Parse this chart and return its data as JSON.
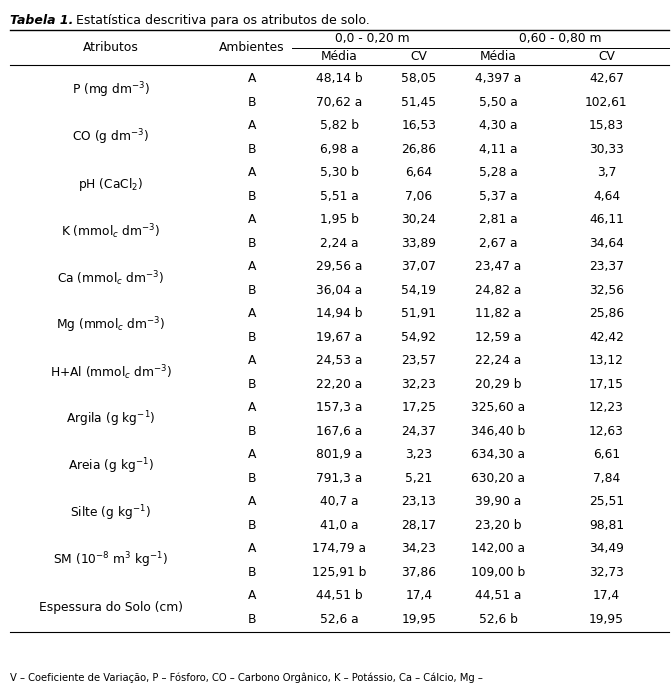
{
  "title_bold": "Tabela 1.",
  "title_normal": " Estatística descritiva para os atributos de solo.",
  "footer": "V – Coeficiente de Variação, P – Fósforo, CO – Carbono Orgânico, K – Potássio, Ca – Cálcio, Mg –",
  "group_header1_left": "0,0 - 0,20 m",
  "group_header1_right": "0,60 - 0,80 m",
  "col2": "Média",
  "col3": "CV",
  "col4": "Média",
  "col5": "CV",
  "hdr_atributos": "Atributos",
  "hdr_ambientes": "Ambientes",
  "rows": [
    {
      "attr": "P (mg dm$^{-3}$)",
      "amb": "A",
      "m1": "48,14 b",
      "cv1": "58,05",
      "m2": "4,397 a",
      "cv2": "42,67"
    },
    {
      "attr": "",
      "amb": "B",
      "m1": "70,62 a",
      "cv1": "51,45",
      "m2": "5,50 a",
      "cv2": "102,61"
    },
    {
      "attr": "CO (g dm$^{-3}$)",
      "amb": "A",
      "m1": "5,82 b",
      "cv1": "16,53",
      "m2": "4,30 a",
      "cv2": "15,83"
    },
    {
      "attr": "",
      "amb": "B",
      "m1": "6,98 a",
      "cv1": "26,86",
      "m2": "4,11 a",
      "cv2": "30,33"
    },
    {
      "attr": "pH (CaCl$_2$)",
      "amb": "A",
      "m1": "5,30 b",
      "cv1": "6,64",
      "m2": "5,28 a",
      "cv2": "3,7"
    },
    {
      "attr": "",
      "amb": "B",
      "m1": "5,51 a",
      "cv1": "7,06",
      "m2": "5,37 a",
      "cv2": "4,64"
    },
    {
      "attr": "K (mmol$_c$ dm$^{-3}$)",
      "amb": "A",
      "m1": "1,95 b",
      "cv1": "30,24",
      "m2": "2,81 a",
      "cv2": "46,11"
    },
    {
      "attr": "",
      "amb": "B",
      "m1": "2,24 a",
      "cv1": "33,89",
      "m2": "2,67 a",
      "cv2": "34,64"
    },
    {
      "attr": "Ca (mmol$_c$ dm$^{-3}$)",
      "amb": "A",
      "m1": "29,56 a",
      "cv1": "37,07",
      "m2": "23,47 a",
      "cv2": "23,37"
    },
    {
      "attr": "",
      "amb": "B",
      "m1": "36,04 a",
      "cv1": "54,19",
      "m2": "24,82 a",
      "cv2": "32,56"
    },
    {
      "attr": "Mg (mmol$_c$ dm$^{-3}$)",
      "amb": "A",
      "m1": "14,94 b",
      "cv1": "51,91",
      "m2": "11,82 a",
      "cv2": "25,86"
    },
    {
      "attr": "",
      "amb": "B",
      "m1": "19,67 a",
      "cv1": "54,92",
      "m2": "12,59 a",
      "cv2": "42,42"
    },
    {
      "attr": "H+Al (mmol$_c$ dm$^{-3}$)",
      "amb": "A",
      "m1": "24,53 a",
      "cv1": "23,57",
      "m2": "22,24 a",
      "cv2": "13,12"
    },
    {
      "attr": "",
      "amb": "B",
      "m1": "22,20 a",
      "cv1": "32,23",
      "m2": "20,29 b",
      "cv2": "17,15"
    },
    {
      "attr": "Argila (g kg$^{-1}$)",
      "amb": "A",
      "m1": "157,3 a",
      "cv1": "17,25",
      "m2": "325,60 a",
      "cv2": "12,23"
    },
    {
      "attr": "",
      "amb": "B",
      "m1": "167,6 a",
      "cv1": "24,37",
      "m2": "346,40 b",
      "cv2": "12,63"
    },
    {
      "attr": "Areia (g kg$^{-1}$)",
      "amb": "A",
      "m1": "801,9 a",
      "cv1": "3,23",
      "m2": "634,30 a",
      "cv2": "6,61"
    },
    {
      "attr": "",
      "amb": "B",
      "m1": "791,3 a",
      "cv1": "5,21",
      "m2": "630,20 a",
      "cv2": "7,84"
    },
    {
      "attr": "Silte (g kg$^{-1}$)",
      "amb": "A",
      "m1": "40,7 a",
      "cv1": "23,13",
      "m2": "39,90 a",
      "cv2": "25,51"
    },
    {
      "attr": "",
      "amb": "B",
      "m1": "41,0 a",
      "cv1": "28,17",
      "m2": "23,20 b",
      "cv2": "98,81"
    },
    {
      "attr": "SM (10$^{-8}$ m$^3$ kg$^{-1}$)",
      "amb": "A",
      "m1": "174,79 a",
      "cv1": "34,23",
      "m2": "142,00 a",
      "cv2": "34,49"
    },
    {
      "attr": "",
      "amb": "B",
      "m1": "125,91 b",
      "cv1": "37,86",
      "m2": "109,00 b",
      "cv2": "32,73"
    },
    {
      "attr": "Espessura do Solo (cm)",
      "amb": "A",
      "m1": "44,51 b",
      "cv1": "17,4",
      "m2": "44,51 a",
      "cv2": "17,4"
    },
    {
      "attr": "",
      "amb": "B",
      "m1": "52,6 a",
      "cv1": "19,95",
      "m2": "52,6 b",
      "cv2": "19,95"
    }
  ],
  "bg_color": "#ffffff",
  "text_color": "#000000",
  "title_fontsize": 9.0,
  "header_fontsize": 8.8,
  "cell_fontsize": 8.8,
  "footer_fontsize": 7.2
}
